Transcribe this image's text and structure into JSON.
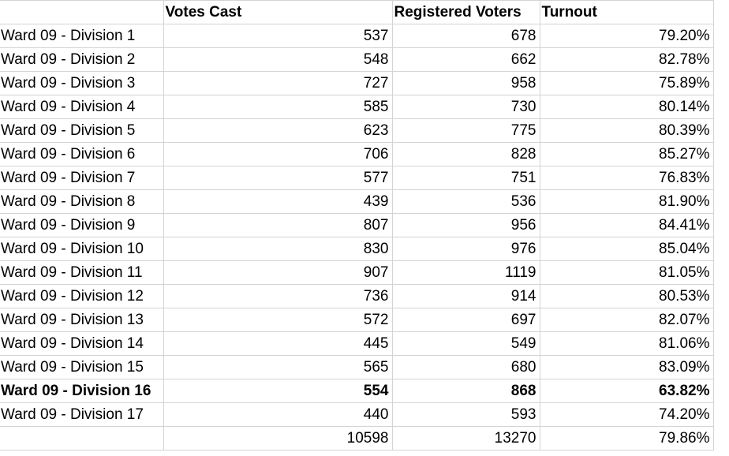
{
  "headers": {
    "name": "",
    "votes_cast": "Votes Cast",
    "registered_voters": "Registered Voters",
    "turnout": "Turnout"
  },
  "rows": [
    {
      "name": "Ward 09 - Division 1",
      "votes_cast": "537",
      "registered_voters": "678",
      "turnout": "79.20%",
      "bold": false
    },
    {
      "name": "Ward 09 - Division 2",
      "votes_cast": "548",
      "registered_voters": "662",
      "turnout": "82.78%",
      "bold": false
    },
    {
      "name": "Ward 09 - Division 3",
      "votes_cast": "727",
      "registered_voters": "958",
      "turnout": "75.89%",
      "bold": false
    },
    {
      "name": "Ward 09 - Division 4",
      "votes_cast": "585",
      "registered_voters": "730",
      "turnout": "80.14%",
      "bold": false
    },
    {
      "name": "Ward 09 - Division 5",
      "votes_cast": "623",
      "registered_voters": "775",
      "turnout": "80.39%",
      "bold": false
    },
    {
      "name": "Ward 09 - Division 6",
      "votes_cast": "706",
      "registered_voters": "828",
      "turnout": "85.27%",
      "bold": false
    },
    {
      "name": "Ward 09 - Division 7",
      "votes_cast": "577",
      "registered_voters": "751",
      "turnout": "76.83%",
      "bold": false
    },
    {
      "name": "Ward 09 - Division 8",
      "votes_cast": "439",
      "registered_voters": "536",
      "turnout": "81.90%",
      "bold": false
    },
    {
      "name": "Ward 09 - Division 9",
      "votes_cast": "807",
      "registered_voters": "956",
      "turnout": "84.41%",
      "bold": false
    },
    {
      "name": "Ward 09 - Division 10",
      "votes_cast": "830",
      "registered_voters": "976",
      "turnout": "85.04%",
      "bold": false
    },
    {
      "name": "Ward 09 - Division 11",
      "votes_cast": "907",
      "registered_voters": "1119",
      "turnout": "81.05%",
      "bold": false
    },
    {
      "name": "Ward 09 - Division 12",
      "votes_cast": "736",
      "registered_voters": "914",
      "turnout": "80.53%",
      "bold": false
    },
    {
      "name": "Ward 09 - Division 13",
      "votes_cast": "572",
      "registered_voters": "697",
      "turnout": "82.07%",
      "bold": false
    },
    {
      "name": "Ward 09 - Division 14",
      "votes_cast": "445",
      "registered_voters": "549",
      "turnout": "81.06%",
      "bold": false
    },
    {
      "name": "Ward 09 - Division 15",
      "votes_cast": "565",
      "registered_voters": "680",
      "turnout": "83.09%",
      "bold": false
    },
    {
      "name": "Ward 09 - Division 16",
      "votes_cast": "554",
      "registered_voters": "868",
      "turnout": "63.82%",
      "bold": true
    },
    {
      "name": "Ward 09 - Division 17",
      "votes_cast": "440",
      "registered_voters": "593",
      "turnout": "74.20%",
      "bold": false
    }
  ],
  "totals": {
    "name": "",
    "votes_cast": "10598",
    "registered_voters": "13270",
    "turnout": "79.86%"
  }
}
